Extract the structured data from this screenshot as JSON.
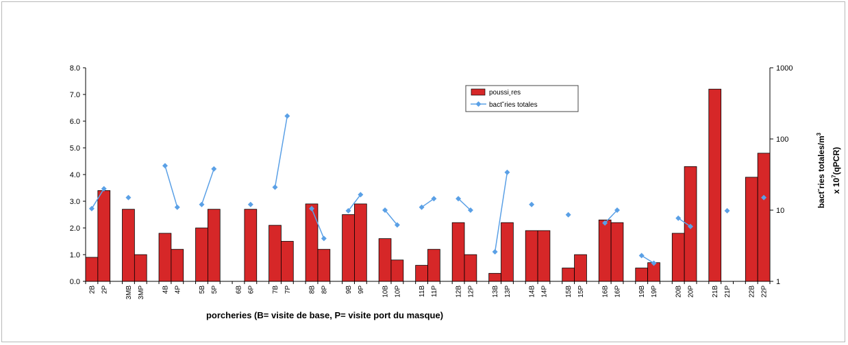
{
  "chart_data": {
    "type": "bar+line",
    "xlabel": "porcheries (B= visite de base, P= visite port du masque)",
    "y2label_line1": "bact˘ries totales/m",
    "y2label_sup": "3",
    "y2label_line2_pre": "x 10",
    "y2label_line2_sup": "7",
    "y2label_line2_post": "(qPCR)",
    "ylim": [
      0,
      8
    ],
    "yticks": [
      "0.0",
      "1.0",
      "2.0",
      "3.0",
      "4.0",
      "5.0",
      "6.0",
      "7.0",
      "8.0"
    ],
    "y2scale": "log",
    "y2lim": [
      1,
      1000
    ],
    "y2ticks": [
      "1",
      "10",
      "100",
      "1000"
    ],
    "categories": [
      "2B",
      "2P",
      "",
      "3MB",
      "3MP",
      "",
      "4B",
      "4P",
      "",
      "5B",
      "5P",
      "",
      "6B",
      "6P",
      "",
      "7B",
      "7P",
      "",
      "8B",
      "8P",
      "",
      "9B",
      "9P",
      "",
      "10B",
      "10P",
      "",
      "11B",
      "11P",
      "",
      "12B",
      "12P",
      "",
      "13B",
      "13P",
      "",
      "14B",
      "14P",
      "",
      "15B",
      "15P",
      "",
      "16B",
      "16P",
      "",
      "19B",
      "19P",
      "",
      "20B",
      "20P",
      "",
      "21B",
      "21P",
      "",
      "22B",
      "22P"
    ],
    "series": [
      {
        "name": "poussi¸res",
        "axis": "left",
        "kind": "bar",
        "color": "#d62728",
        "values": [
          0.9,
          3.4,
          null,
          2.7,
          1.0,
          null,
          1.8,
          1.2,
          null,
          2.0,
          2.7,
          null,
          null,
          2.7,
          null,
          2.1,
          1.5,
          null,
          2.9,
          1.2,
          null,
          2.5,
          2.9,
          null,
          1.6,
          0.8,
          null,
          0.6,
          1.2,
          null,
          2.2,
          1.0,
          null,
          0.3,
          2.2,
          null,
          1.9,
          1.9,
          null,
          0.5,
          1.0,
          null,
          2.3,
          2.2,
          null,
          0.5,
          0.7,
          null,
          1.8,
          4.3,
          null,
          7.2,
          null,
          null,
          3.9,
          4.8
        ]
      },
      {
        "name": "bact˘ries totales",
        "axis": "right",
        "kind": "line",
        "color": "#5aa0e6",
        "values": [
          10.5,
          20,
          null,
          15,
          null,
          null,
          42,
          11,
          null,
          12,
          38,
          null,
          null,
          12,
          null,
          21,
          210,
          null,
          10.5,
          4,
          null,
          9.8,
          16.5,
          null,
          10,
          6.2,
          null,
          11,
          14.5,
          null,
          14.5,
          10,
          null,
          2.6,
          34,
          null,
          12,
          null,
          null,
          8.6,
          null,
          null,
          6.6,
          10,
          null,
          2.3,
          1.8,
          null,
          7.7,
          5.9,
          null,
          null,
          9.8,
          null,
          null,
          15
        ]
      }
    ],
    "legend_position": "top-center"
  }
}
